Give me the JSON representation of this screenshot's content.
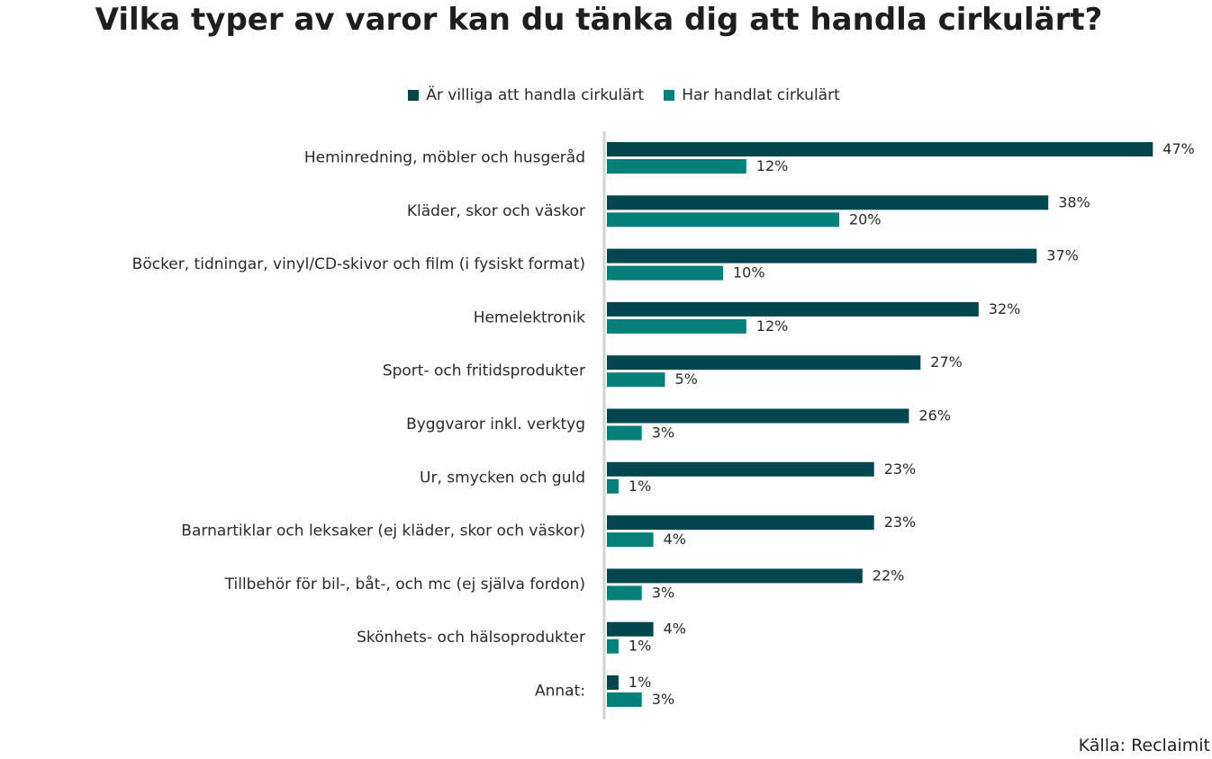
{
  "title": "Vilka typer av varor kan du tänka dig att handla cirkulärt?",
  "source": "Källa: Reclaimit",
  "colors": {
    "series_a": "#01464f",
    "series_b": "#047f7a",
    "axis": "#d3d3d3"
  },
  "chart_data": {
    "type": "bar",
    "orientation": "horizontal",
    "title": "Vilka typer av varor kan du tänka dig att handla cirkulärt?",
    "xlabel": "",
    "ylabel": "",
    "xlim": [
      0,
      47
    ],
    "unit": "%",
    "grid": false,
    "legend_position": "top-center",
    "categories": [
      "Heminredning, möbler och husgeråd",
      "Kläder, skor och väskor",
      "Böcker, tidningar, vinyl/CD-skivor och film (i fysiskt format)",
      "Hemelektronik",
      "Sport- och fritidsprodukter",
      "Byggvaror inkl. verktyg",
      "Ur, smycken och guld",
      "Barnartiklar och leksaker (ej kläder, skor och väskor)",
      "Tillbehör för bil-, båt-, och mc (ej själva fordon)",
      "Skönhets- och hälsoprodukter",
      "Annat:"
    ],
    "series": [
      {
        "name": "Är villiga att handla cirkulärt",
        "values": [
          47,
          38,
          37,
          32,
          27,
          26,
          23,
          23,
          22,
          4,
          1
        ]
      },
      {
        "name": "Har handlat cirkulärt",
        "values": [
          12,
          20,
          10,
          12,
          5,
          3,
          1,
          4,
          3,
          1,
          3
        ]
      }
    ]
  }
}
